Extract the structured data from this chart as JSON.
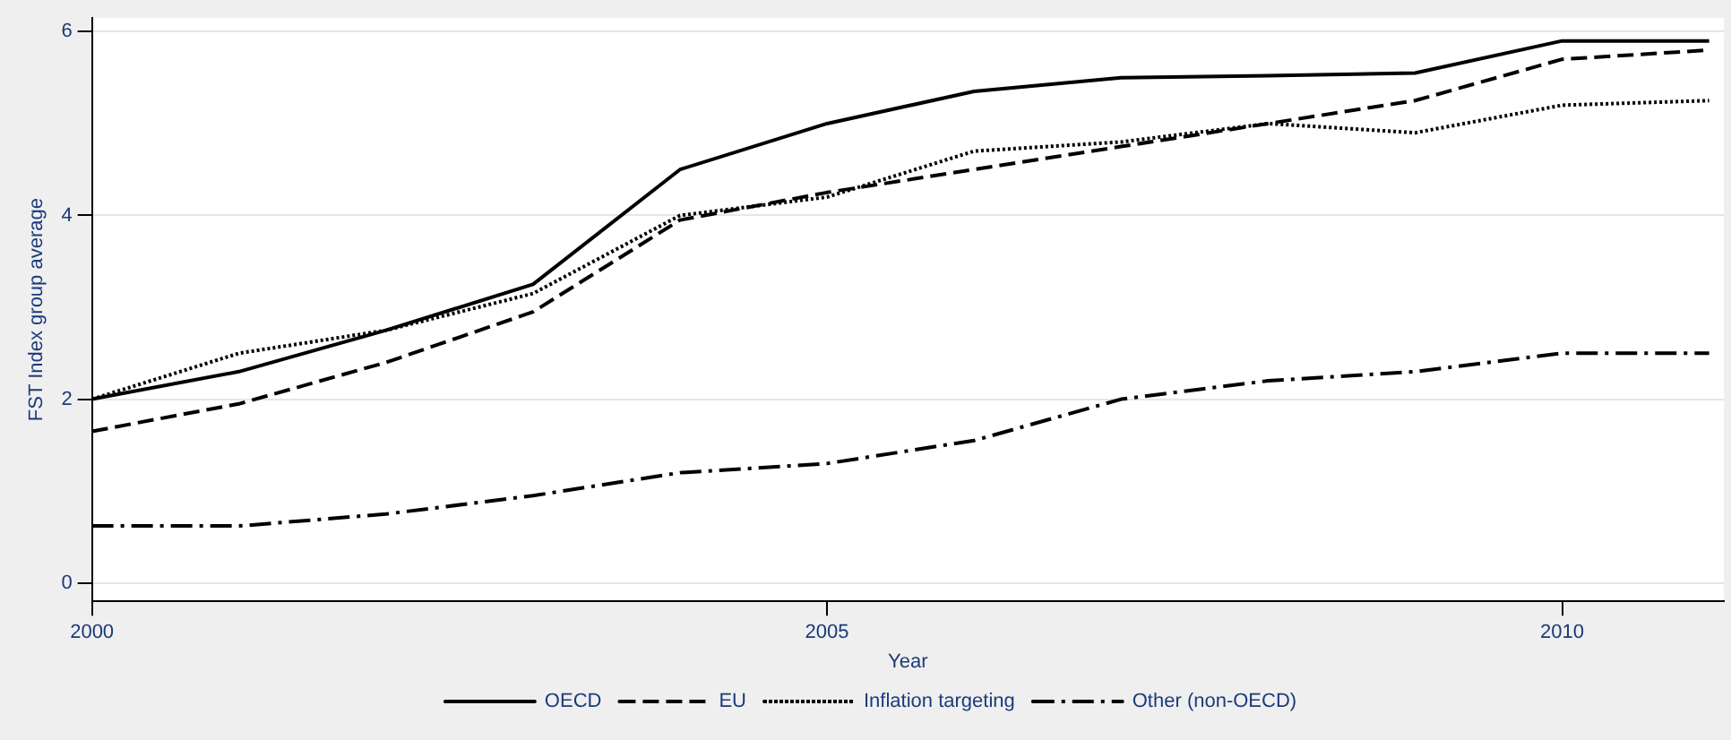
{
  "chart_data": {
    "type": "line",
    "xlabel": "Year",
    "ylabel": "FST Index group average",
    "x": [
      2000,
      2001,
      2002,
      2003,
      2004,
      2005,
      2006,
      2007,
      2008,
      2009,
      2010,
      2011
    ],
    "series": [
      {
        "name": "OECD",
        "color": "#000000",
        "line_style": "solid",
        "values": [
          2.0,
          2.3,
          2.75,
          3.25,
          4.5,
          5.0,
          5.35,
          5.5,
          5.52,
          5.55,
          5.9,
          5.9
        ]
      },
      {
        "name": "EU",
        "color": "#000000",
        "line_style": "dashed",
        "values": [
          1.65,
          1.95,
          2.4,
          2.95,
          3.95,
          4.25,
          4.5,
          4.75,
          5.0,
          5.25,
          5.7,
          5.8
        ]
      },
      {
        "name": "Inflation targeting",
        "color": "#000000",
        "line_style": "dotted",
        "values": [
          2.0,
          2.5,
          2.75,
          3.15,
          4.0,
          4.2,
          4.7,
          4.8,
          5.0,
          4.9,
          5.2,
          5.25
        ]
      },
      {
        "name": "Other (non-OECD)",
        "color": "#000000",
        "line_style": "dashdot",
        "values": [
          0.62,
          0.62,
          0.75,
          0.95,
          1.2,
          1.3,
          1.55,
          2.0,
          2.2,
          2.3,
          2.5,
          2.5
        ]
      }
    ],
    "xlim": [
      2000,
      2011.1
    ],
    "xticks": [
      2000,
      2005,
      2010
    ],
    "ylim": [
      -0.2,
      6.15
    ],
    "yticks": [
      0,
      2,
      4,
      6
    ],
    "grid": "y",
    "legend": "bottom",
    "marker": "none"
  }
}
